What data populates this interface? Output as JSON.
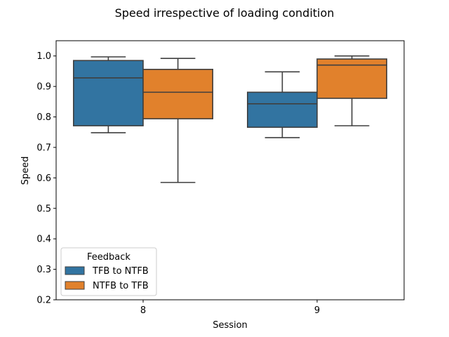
{
  "chart_data": {
    "type": "box",
    "title": "Speed irrespective of loading condition",
    "xlabel": "Session",
    "ylabel": "Speed",
    "categories": [
      "8",
      "9"
    ],
    "ylim": [
      0.2,
      1.05
    ],
    "yticks": [
      "0.2",
      "0.3",
      "0.4",
      "0.5",
      "0.6",
      "0.7",
      "0.8",
      "0.9",
      "1.0"
    ],
    "grid": false,
    "legend": {
      "title": "Feedback",
      "placement": "lower-left"
    },
    "series": [
      {
        "name": "TFB to NTFB",
        "color": "#3274a1",
        "boxes": [
          {
            "whislo": 0.748,
            "q1": 0.771,
            "med": 0.928,
            "q3": 0.985,
            "whishi": 0.997
          },
          {
            "whislo": 0.732,
            "q1": 0.766,
            "med": 0.843,
            "q3": 0.881,
            "whishi": 0.948
          }
        ]
      },
      {
        "name": "NTFB to TFB",
        "color": "#e1812c",
        "boxes": [
          {
            "whislo": 0.585,
            "q1": 0.794,
            "med": 0.881,
            "q3": 0.956,
            "whishi": 0.992
          },
          {
            "whislo": 0.771,
            "q1": 0.861,
            "med": 0.97,
            "q3": 0.99,
            "whishi": 1.0
          }
        ]
      }
    ]
  }
}
